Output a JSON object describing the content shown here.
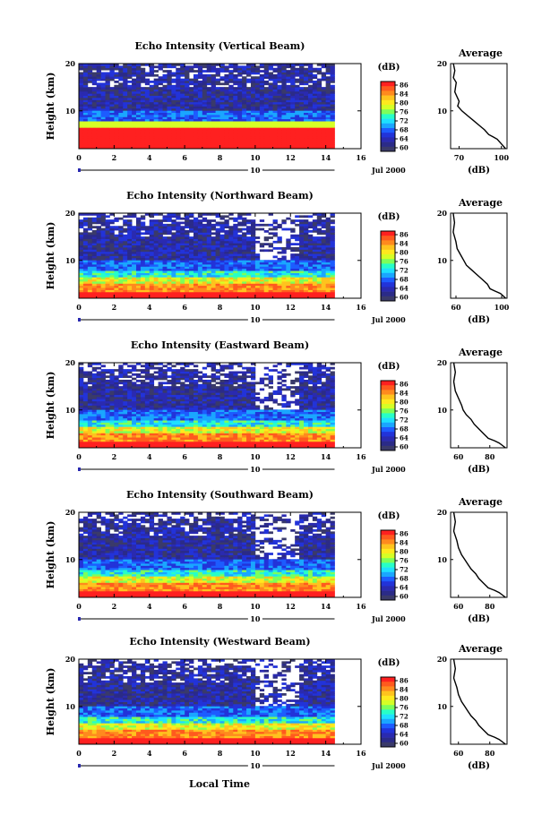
{
  "figure": {
    "xlabel": "Local Time",
    "date_label": "Jul 2000",
    "marker_label": "10"
  },
  "colorbar": {
    "unit": "(dB)",
    "tick_labels": [
      "86",
      "84",
      "80",
      "76",
      "72",
      "68",
      "64",
      "60"
    ],
    "colors": [
      "#ff2020",
      "#ff5a1e",
      "#ff8a1e",
      "#ffc31e",
      "#ffe91e",
      "#d6ff26",
      "#7dff5a",
      "#27ffc7",
      "#1ee0ff",
      "#1aa6ff",
      "#1d5cff",
      "#2233d9",
      "#2a2ab0",
      "#2b2b88",
      "#3a3a6a"
    ]
  },
  "chart_data": [
    {
      "type": "heatmap",
      "title": "Echo Intensity (Vertical Beam)",
      "ylabel": "Height (km)",
      "xlim": [
        0,
        16
      ],
      "ylim": [
        2,
        20
      ],
      "x_tick_labels": [
        "0",
        "2",
        "4",
        "6",
        "8",
        "10",
        "12",
        "14",
        "16"
      ],
      "y_tick_labels": [
        "20",
        "10"
      ],
      "data_end_hour": 14.5,
      "colorbar_range_db": [
        60,
        86
      ],
      "profile": {
        "title": "Average",
        "xlabel": "(dB)",
        "x_tick_labels": [
          "70",
          "100"
        ],
        "y_tick_labels": [
          "20",
          "10"
        ],
        "x": [
          66,
          67,
          66,
          68,
          67,
          70,
          69,
          72,
          76,
          80,
          84,
          88,
          91,
          94,
          97,
          100,
          103
        ],
        "y": [
          20,
          18.5,
          17,
          16,
          14,
          12,
          11,
          10,
          9,
          8,
          7,
          6,
          5,
          4.5,
          4,
          3,
          2
        ]
      }
    },
    {
      "type": "heatmap",
      "title": "Echo Intensity (Northward Beam)",
      "ylabel": "Height (km)",
      "xlim": [
        0,
        16
      ],
      "ylim": [
        2,
        20
      ],
      "x_tick_labels": [
        "0",
        "2",
        "4",
        "6",
        "8",
        "10",
        "12",
        "14",
        "16"
      ],
      "y_tick_labels": [
        "20",
        "10"
      ],
      "data_end_hour": 14.5,
      "colorbar_range_db": [
        60,
        86
      ],
      "profile": {
        "title": "Average",
        "xlabel": "(dB)",
        "x_tick_labels": [
          "60",
          "100"
        ],
        "y_tick_labels": [
          "20",
          "10"
        ],
        "x": [
          60,
          61,
          60,
          62,
          63,
          66,
          68,
          70,
          74,
          78,
          82,
          86,
          88,
          92,
          96,
          100
        ],
        "y": [
          20,
          18,
          16,
          14,
          12.5,
          11,
          10,
          9,
          8,
          7,
          6,
          5,
          4,
          3.5,
          3,
          2
        ]
      }
    },
    {
      "type": "heatmap",
      "title": "Echo Intensity (Eastward Beam)",
      "ylabel": "Height (km)",
      "xlim": [
        0,
        16
      ],
      "ylim": [
        2,
        20
      ],
      "x_tick_labels": [
        "0",
        "2",
        "4",
        "6",
        "8",
        "10",
        "12",
        "14",
        "16"
      ],
      "y_tick_labels": [
        "20",
        "10"
      ],
      "data_end_hour": 14.5,
      "colorbar_range_db": [
        60,
        86
      ],
      "profile": {
        "title": "Average",
        "xlabel": "(dB)",
        "x_tick_labels": [
          "60",
          "80"
        ],
        "y_tick_labels": [
          "20",
          "10"
        ],
        "x": [
          57,
          58,
          57,
          58,
          60,
          62,
          63,
          65,
          68,
          70,
          73,
          76,
          79,
          83,
          86,
          90
        ],
        "y": [
          20,
          18,
          16,
          14,
          12.5,
          11,
          10,
          9,
          8,
          7,
          6,
          5,
          4,
          3.5,
          3,
          2
        ]
      }
    },
    {
      "type": "heatmap",
      "title": "Echo Intensity (Southward Beam)",
      "ylabel": "Height (km)",
      "xlim": [
        0,
        16
      ],
      "ylim": [
        2,
        20
      ],
      "x_tick_labels": [
        "0",
        "2",
        "4",
        "6",
        "8",
        "10",
        "12",
        "14",
        "16"
      ],
      "y_tick_labels": [
        "20",
        "10"
      ],
      "data_end_hour": 14.5,
      "colorbar_range_db": [
        60,
        86
      ],
      "profile": {
        "title": "Average",
        "xlabel": "(dB)",
        "x_tick_labels": [
          "60",
          "80"
        ],
        "y_tick_labels": [
          "20",
          "10"
        ],
        "x": [
          57,
          58,
          57,
          59,
          60,
          62,
          64,
          66,
          68,
          71,
          73,
          76,
          79,
          83,
          86,
          90
        ],
        "y": [
          20,
          18,
          16,
          14,
          12.5,
          11,
          10,
          9,
          8,
          7,
          6,
          5,
          4,
          3.5,
          3,
          2
        ]
      }
    },
    {
      "type": "heatmap",
      "title": "Echo Intensity (Westward Beam)",
      "ylabel": "Height (km)",
      "xlim": [
        0,
        16
      ],
      "ylim": [
        2,
        20
      ],
      "x_tick_labels": [
        "0",
        "2",
        "4",
        "6",
        "8",
        "10",
        "12",
        "14",
        "16"
      ],
      "y_tick_labels": [
        "20",
        "10"
      ],
      "data_end_hour": 14.5,
      "colorbar_range_db": [
        60,
        86
      ],
      "profile": {
        "title": "Average",
        "xlabel": "(dB)",
        "x_tick_labels": [
          "60",
          "80"
        ],
        "y_tick_labels": [
          "20",
          "10"
        ],
        "x": [
          57,
          58,
          57,
          59,
          60,
          62,
          64,
          66,
          68,
          71,
          73,
          76,
          79,
          83,
          86,
          90
        ],
        "y": [
          20,
          18,
          16,
          14,
          12.5,
          11,
          10,
          9,
          8,
          7,
          6,
          5,
          4,
          3.5,
          3,
          2
        ]
      }
    }
  ]
}
